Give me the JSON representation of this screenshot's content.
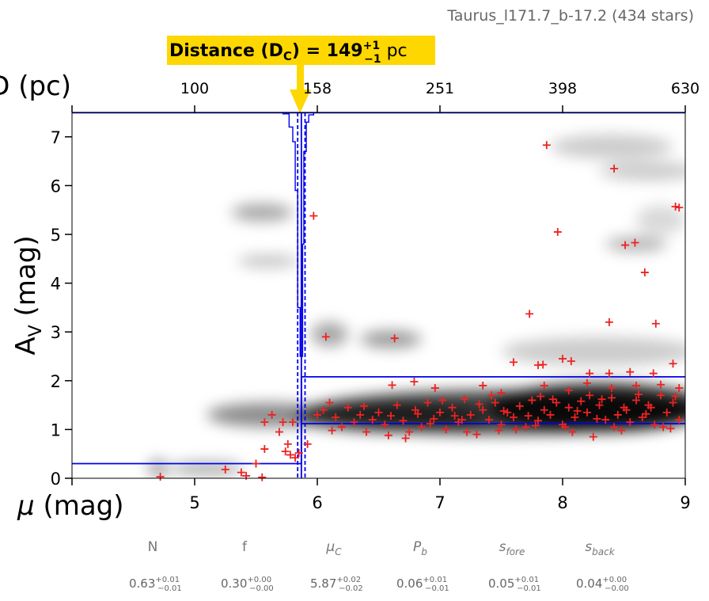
{
  "header": {
    "region": "Taurus_l171.7_b-17.2 (434 stars)"
  },
  "distance_box": {
    "label": "Distance (D",
    "label_sub": "C",
    "label_eq": ") = 149",
    "plus": "+1",
    "minus": "−1",
    "unit": " pc",
    "bg_color": "#FFD700"
  },
  "params": [
    {
      "name": "N",
      "sub": "",
      "italic": false,
      "value": "0.63",
      "plus": "+0.01",
      "minus": "−0.01"
    },
    {
      "name": "f",
      "sub": "",
      "italic": false,
      "value": "0.30",
      "plus": "+0.00",
      "minus": "−0.00"
    },
    {
      "name": "μ",
      "sub": "C",
      "italic": true,
      "value": "5.87",
      "plus": "+0.02",
      "minus": "−0.02"
    },
    {
      "name": "P",
      "sub": "b",
      "italic": true,
      "value": "0.06",
      "plus": "+0.01",
      "minus": "−0.01"
    },
    {
      "name": "s",
      "sub": "fore",
      "italic": true,
      "value": "0.05",
      "plus": "+0.01",
      "minus": "−0.01"
    },
    {
      "name": "s",
      "sub": "back",
      "italic": true,
      "value": "0.04",
      "plus": "+0.00",
      "minus": "−0.00"
    }
  ],
  "chart_data": {
    "type": "scatter",
    "xlabel": "μ (mag)",
    "xlabel_mu": "μ",
    "xlabel_unit": " (mag)",
    "ylabel": "A",
    "ylabel_sub": "V",
    "ylabel_unit": " (mag)",
    "top_label": "D (pc)",
    "xlim": [
      4,
      9
    ],
    "ylim": [
      0,
      7.5
    ],
    "x_ticks": [
      "5",
      "6",
      "7",
      "8",
      "9"
    ],
    "y_ticks": [
      "0",
      "1",
      "2",
      "3",
      "4",
      "5",
      "6",
      "7"
    ],
    "top_ticks": [
      {
        "mu": 5.0,
        "label": "100"
      },
      {
        "mu": 6.0,
        "label": "158"
      },
      {
        "mu": 7.0,
        "label": "251"
      },
      {
        "mu": 8.0,
        "label": "398"
      },
      {
        "mu": 9.0,
        "label": "630"
      }
    ],
    "colors": {
      "stars": "#EE2222",
      "model": "#0000EE",
      "density": "#000000"
    },
    "model_line": {
      "mu_c": 5.87,
      "av_fore": 0.3,
      "av_back": 1.12,
      "av_back_upper": 2.08
    },
    "distance_lines": [
      5.84,
      5.87,
      5.9
    ],
    "pdf_steps": [
      {
        "x0": 5.65,
        "x1": 5.72,
        "y": 7.52
      },
      {
        "x0": 5.72,
        "x1": 5.77,
        "y": 7.47
      },
      {
        "x0": 5.77,
        "x1": 5.8,
        "y": 7.2
      },
      {
        "x0": 5.8,
        "x1": 5.82,
        "y": 6.9
      },
      {
        "x0": 5.82,
        "x1": 5.84,
        "y": 5.9
      },
      {
        "x0": 5.84,
        "x1": 5.86,
        "y": 3.5
      },
      {
        "x0": 5.86,
        "x1": 5.88,
        "y": 2.5
      },
      {
        "x0": 5.88,
        "x1": 5.89,
        "y": 4.8
      },
      {
        "x0": 5.89,
        "x1": 5.91,
        "y": 6.7
      },
      {
        "x0": 5.91,
        "x1": 5.93,
        "y": 7.3
      },
      {
        "x0": 5.93,
        "x1": 5.97,
        "y": 7.45
      },
      {
        "x0": 5.97,
        "x1": 6.02,
        "y": 7.52
      }
    ],
    "density_blobs": [
      {
        "x": 7.5,
        "y": 1.35,
        "rx": 1.6,
        "ry": 0.45,
        "o": 0.75
      },
      {
        "x": 8.3,
        "y": 1.45,
        "rx": 0.9,
        "ry": 0.5,
        "o": 0.85
      },
      {
        "x": 6.6,
        "y": 1.25,
        "rx": 0.8,
        "ry": 0.3,
        "o": 0.55
      },
      {
        "x": 5.6,
        "y": 1.3,
        "rx": 0.5,
        "ry": 0.25,
        "o": 0.45
      },
      {
        "x": 5.1,
        "y": 0.2,
        "rx": 0.3,
        "ry": 0.15,
        "o": 0.3
      },
      {
        "x": 4.7,
        "y": 0.2,
        "rx": 0.08,
        "ry": 0.2,
        "o": 0.35
      },
      {
        "x": 5.55,
        "y": 5.45,
        "rx": 0.25,
        "ry": 0.18,
        "o": 0.35
      },
      {
        "x": 5.6,
        "y": 4.45,
        "rx": 0.25,
        "ry": 0.12,
        "o": 0.25
      },
      {
        "x": 6.1,
        "y": 2.95,
        "rx": 0.15,
        "ry": 0.25,
        "o": 0.35
      },
      {
        "x": 6.6,
        "y": 2.85,
        "rx": 0.25,
        "ry": 0.18,
        "o": 0.4
      },
      {
        "x": 8.4,
        "y": 6.8,
        "rx": 0.5,
        "ry": 0.25,
        "o": 0.2
      },
      {
        "x": 8.7,
        "y": 6.3,
        "rx": 0.4,
        "ry": 0.2,
        "o": 0.2
      },
      {
        "x": 8.6,
        "y": 4.8,
        "rx": 0.25,
        "ry": 0.15,
        "o": 0.3
      },
      {
        "x": 8.3,
        "y": 2.6,
        "rx": 0.8,
        "ry": 0.3,
        "o": 0.2
      },
      {
        "x": 8.8,
        "y": 5.3,
        "rx": 0.2,
        "ry": 0.3,
        "o": 0.15
      }
    ],
    "stars": [
      [
        4.72,
        0.03
      ],
      [
        5.25,
        0.18
      ],
      [
        5.38,
        0.12
      ],
      [
        5.5,
        0.3
      ],
      [
        5.55,
        0.02
      ],
      [
        5.42,
        0.05
      ],
      [
        5.57,
        0.6
      ],
      [
        5.63,
        1.3
      ],
      [
        5.69,
        0.95
      ],
      [
        5.72,
        1.15
      ],
      [
        5.57,
        1.15
      ],
      [
        5.74,
        0.55
      ],
      [
        5.78,
        0.48
      ],
      [
        5.82,
        0.42
      ],
      [
        5.85,
        0.52
      ],
      [
        5.76,
        0.7
      ],
      [
        5.8,
        1.15
      ],
      [
        5.97,
        5.38
      ],
      [
        6.07,
        2.9
      ],
      [
        6.63,
        2.87
      ],
      [
        7.73,
        3.37
      ],
      [
        7.87,
        6.83
      ],
      [
        7.96,
        5.05
      ],
      [
        8.42,
        6.35
      ],
      [
        8.51,
        4.78
      ],
      [
        8.59,
        4.83
      ],
      [
        8.67,
        4.22
      ],
      [
        8.38,
        3.2
      ],
      [
        8.76,
        3.17
      ],
      [
        8.92,
        5.57
      ],
      [
        8.95,
        5.55
      ],
      [
        7.6,
        2.38
      ],
      [
        7.8,
        2.32
      ],
      [
        7.84,
        2.33
      ],
      [
        8.0,
        2.45
      ],
      [
        8.07,
        2.4
      ],
      [
        8.22,
        2.15
      ],
      [
        8.38,
        2.15
      ],
      [
        8.55,
        2.18
      ],
      [
        8.74,
        2.15
      ],
      [
        8.9,
        2.35
      ],
      [
        6.61,
        1.91
      ],
      [
        6.79,
        1.98
      ],
      [
        6.96,
        1.85
      ],
      [
        7.35,
        1.9
      ],
      [
        7.5,
        1.75
      ],
      [
        7.85,
        1.9
      ],
      [
        8.05,
        1.8
      ],
      [
        8.2,
        1.95
      ],
      [
        8.4,
        1.85
      ],
      [
        8.6,
        1.9
      ],
      [
        8.8,
        1.92
      ],
      [
        8.95,
        1.85
      ],
      [
        5.92,
        0.7
      ],
      [
        6.0,
        1.3
      ],
      [
        6.05,
        1.4
      ],
      [
        6.1,
        1.55
      ],
      [
        6.15,
        1.25
      ],
      [
        6.2,
        1.05
      ],
      [
        6.25,
        1.45
      ],
      [
        6.3,
        1.15
      ],
      [
        6.35,
        1.3
      ],
      [
        6.4,
        0.95
      ],
      [
        6.45,
        1.2
      ],
      [
        6.5,
        1.35
      ],
      [
        6.55,
        1.1
      ],
      [
        6.6,
        1.28
      ],
      [
        6.65,
        1.5
      ],
      [
        6.7,
        1.18
      ],
      [
        6.75,
        0.95
      ],
      [
        6.8,
        1.4
      ],
      [
        6.85,
        1.05
      ],
      [
        6.9,
        1.55
      ],
      [
        6.95,
        1.22
      ],
      [
        7.0,
        1.35
      ],
      [
        7.05,
        1.0
      ],
      [
        7.1,
        1.45
      ],
      [
        7.15,
        1.15
      ],
      [
        7.2,
        1.62
      ],
      [
        7.25,
        1.3
      ],
      [
        7.3,
        0.9
      ],
      [
        7.35,
        1.4
      ],
      [
        7.4,
        1.2
      ],
      [
        7.45,
        1.55
      ],
      [
        7.5,
        1.1
      ],
      [
        7.55,
        1.35
      ],
      [
        7.6,
        1.25
      ],
      [
        7.65,
        1.48
      ],
      [
        7.7,
        1.05
      ],
      [
        7.75,
        1.6
      ],
      [
        7.8,
        1.18
      ],
      [
        7.85,
        1.4
      ],
      [
        7.9,
        1.3
      ],
      [
        7.95,
        1.55
      ],
      [
        8.0,
        1.1
      ],
      [
        8.05,
        1.45
      ],
      [
        8.1,
        1.25
      ],
      [
        8.15,
        1.58
      ],
      [
        8.2,
        1.35
      ],
      [
        8.25,
        0.85
      ],
      [
        8.3,
        1.5
      ],
      [
        8.35,
        1.2
      ],
      [
        8.4,
        1.65
      ],
      [
        8.45,
        1.3
      ],
      [
        8.5,
        1.45
      ],
      [
        8.55,
        1.15
      ],
      [
        8.6,
        1.6
      ],
      [
        8.65,
        1.25
      ],
      [
        8.7,
        1.5
      ],
      [
        8.75,
        1.1
      ],
      [
        8.8,
        1.7
      ],
      [
        8.85,
        1.35
      ],
      [
        8.9,
        1.55
      ],
      [
        8.95,
        1.2
      ],
      [
        6.12,
        0.98
      ],
      [
        6.38,
        1.48
      ],
      [
        6.58,
        0.88
      ],
      [
        6.82,
        1.32
      ],
      [
        7.02,
        1.6
      ],
      [
        7.22,
        0.95
      ],
      [
        7.42,
        1.7
      ],
      [
        7.62,
        1.0
      ],
      [
        7.82,
        1.68
      ],
      [
        8.02,
        1.05
      ],
      [
        8.22,
        1.7
      ],
      [
        8.42,
        1.05
      ],
      [
        8.62,
        1.72
      ],
      [
        8.82,
        1.05
      ],
      [
        7.12,
        1.28
      ],
      [
        7.32,
        1.52
      ],
      [
        7.52,
        1.38
      ],
      [
        7.72,
        1.28
      ],
      [
        7.92,
        1.62
      ],
      [
        8.12,
        1.38
      ],
      [
        8.32,
        1.62
      ],
      [
        8.52,
        1.4
      ],
      [
        8.72,
        1.45
      ],
      [
        8.92,
        1.68
      ],
      [
        6.72,
        0.82
      ],
      [
        6.92,
        1.12
      ],
      [
        7.18,
        1.2
      ],
      [
        7.48,
        0.98
      ],
      [
        7.78,
        1.08
      ],
      [
        8.08,
        0.95
      ],
      [
        8.28,
        1.22
      ],
      [
        8.48,
        0.98
      ],
      [
        8.68,
        1.32
      ],
      [
        8.88,
        1.02
      ]
    ]
  }
}
